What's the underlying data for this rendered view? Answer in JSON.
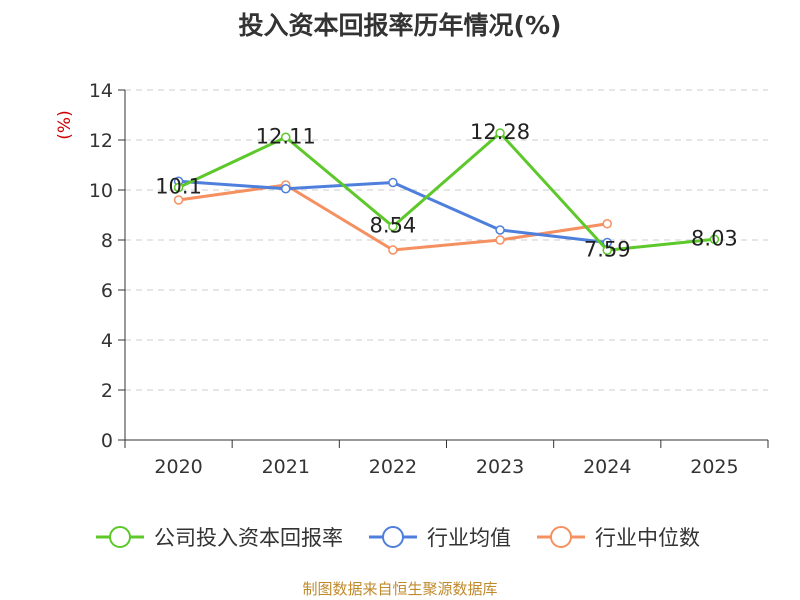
{
  "chart_data": {
    "type": "line",
    "title": "投入资本回报率历年情况(%)",
    "ylabel": "(%)",
    "xlabel": "",
    "categories": [
      "2020",
      "2021",
      "2022",
      "2023",
      "2024",
      "2025"
    ],
    "ylim": [
      0,
      14
    ],
    "yticks": [
      0,
      2,
      4,
      6,
      8,
      10,
      12,
      14
    ],
    "grid": true,
    "legend_position": "bottom",
    "series": [
      {
        "name": "公司投入资本回报率",
        "color": "#5cc82a",
        "values": [
          10.1,
          12.11,
          8.54,
          12.28,
          7.59,
          8.03
        ],
        "labels": [
          "10.1",
          "12.11",
          "8.54",
          "12.28",
          "7.59",
          "8.03"
        ]
      },
      {
        "name": "行业均值",
        "color": "#4f7fdc",
        "values": [
          10.35,
          10.05,
          10.3,
          8.4,
          7.9,
          null
        ]
      },
      {
        "name": "行业中位数",
        "color": "#f59060",
        "values": [
          9.6,
          10.2,
          7.6,
          8.0,
          8.65,
          null
        ]
      }
    ]
  },
  "source": "制图数据来自恒生聚源数据库"
}
